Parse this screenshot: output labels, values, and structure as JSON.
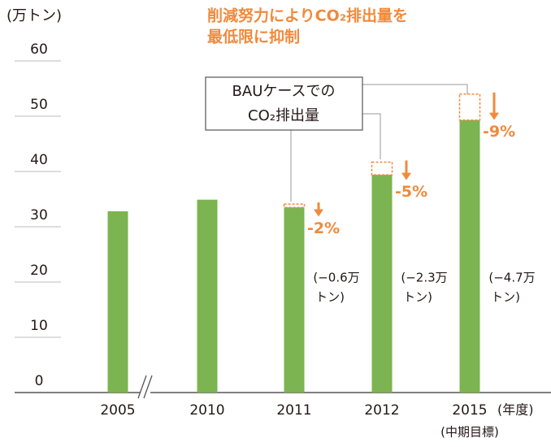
{
  "chart_data": {
    "type": "bar",
    "title": [
      "削減努力によりCO₂排出量を",
      "最低限に抑制"
    ],
    "y_label": "(万トン)",
    "x_label": "(年度)",
    "categories": [
      "2005",
      "2010",
      "2011",
      "2012",
      "2015"
    ],
    "category_notes": [
      null,
      null,
      null,
      null,
      "(中期目標)"
    ],
    "values": [
      32.8,
      34.9,
      33.5,
      39.4,
      49.3
    ],
    "color": "#7cb451",
    "ylim": [
      0,
      60
    ],
    "yticks": [
      0,
      10,
      20,
      30,
      40,
      50,
      60
    ],
    "bau": {
      "label": [
        "BAUケースでの",
        "CO₂排出量"
      ],
      "values": [
        null,
        null,
        34.1,
        41.7,
        54.0
      ],
      "color": "#f08a3c"
    },
    "reduction_pct": [
      null,
      null,
      -2,
      -5,
      -9
    ],
    "reduction_pct_labels": [
      null,
      null,
      "-2%",
      "-5%",
      "-9%"
    ],
    "reduction_amounts": [
      null,
      null,
      -0.6,
      -2.3,
      -4.7
    ],
    "reduction_amount_labels": [
      null,
      null,
      [
        "(−0.6万",
        "トン)"
      ],
      [
        "(−2.3万",
        "トン)"
      ],
      [
        "(−4.7万",
        "トン)"
      ]
    ]
  }
}
